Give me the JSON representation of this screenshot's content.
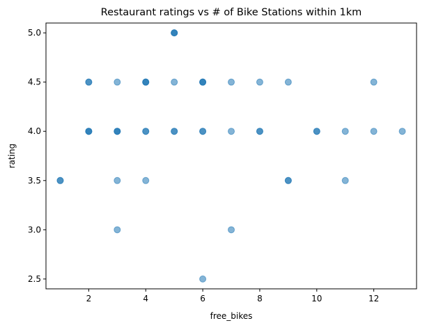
{
  "chart_data": {
    "type": "scatter",
    "title": "Restaurant ratings vs # of Bike Stations within 1km",
    "xlabel": "free_bikes",
    "ylabel": "rating",
    "xlim": [
      0.5,
      13.5
    ],
    "ylim": [
      2.4,
      5.1
    ],
    "x_ticks": [
      2,
      4,
      6,
      8,
      10,
      12
    ],
    "y_ticks": [
      2.5,
      3.0,
      3.5,
      4.0,
      4.5,
      5.0
    ],
    "x_tick_labels": [
      "2",
      "4",
      "6",
      "8",
      "10",
      "12"
    ],
    "y_tick_labels": [
      "2.5",
      "3.0",
      "3.5",
      "4.0",
      "4.5",
      "5.0"
    ],
    "grid": false,
    "marker_color": "#1f77b4",
    "marker_alpha": 0.55,
    "points": [
      {
        "x": 1,
        "y": 3.5
      },
      {
        "x": 1,
        "y": 3.5
      },
      {
        "x": 2,
        "y": 4.5
      },
      {
        "x": 2,
        "y": 4.5
      },
      {
        "x": 2,
        "y": 4.0
      },
      {
        "x": 2,
        "y": 4.0
      },
      {
        "x": 2,
        "y": 4.0
      },
      {
        "x": 3,
        "y": 4.5
      },
      {
        "x": 3,
        "y": 4.0
      },
      {
        "x": 3,
        "y": 4.0
      },
      {
        "x": 3,
        "y": 4.0
      },
      {
        "x": 3,
        "y": 3.5
      },
      {
        "x": 3,
        "y": 3.0
      },
      {
        "x": 4,
        "y": 4.5
      },
      {
        "x": 4,
        "y": 4.5
      },
      {
        "x": 4,
        "y": 4.5
      },
      {
        "x": 4,
        "y": 4.0
      },
      {
        "x": 4,
        "y": 4.0
      },
      {
        "x": 4,
        "y": 3.5
      },
      {
        "x": 5,
        "y": 5.0
      },
      {
        "x": 5,
        "y": 5.0
      },
      {
        "x": 5,
        "y": 5.0
      },
      {
        "x": 5,
        "y": 4.5
      },
      {
        "x": 5,
        "y": 4.0
      },
      {
        "x": 5,
        "y": 4.0
      },
      {
        "x": 6,
        "y": 4.5
      },
      {
        "x": 6,
        "y": 4.5
      },
      {
        "x": 6,
        "y": 4.5
      },
      {
        "x": 6,
        "y": 4.0
      },
      {
        "x": 6,
        "y": 4.0
      },
      {
        "x": 6,
        "y": 2.5
      },
      {
        "x": 7,
        "y": 4.5
      },
      {
        "x": 7,
        "y": 4.0
      },
      {
        "x": 7,
        "y": 3.0
      },
      {
        "x": 8,
        "y": 4.5
      },
      {
        "x": 8,
        "y": 4.0
      },
      {
        "x": 8,
        "y": 4.0
      },
      {
        "x": 9,
        "y": 4.5
      },
      {
        "x": 9,
        "y": 3.5
      },
      {
        "x": 9,
        "y": 3.5
      },
      {
        "x": 10,
        "y": 4.0
      },
      {
        "x": 10,
        "y": 4.0
      },
      {
        "x": 11,
        "y": 4.0
      },
      {
        "x": 11,
        "y": 3.5
      },
      {
        "x": 12,
        "y": 4.5
      },
      {
        "x": 12,
        "y": 4.0
      },
      {
        "x": 13,
        "y": 4.0
      }
    ]
  }
}
